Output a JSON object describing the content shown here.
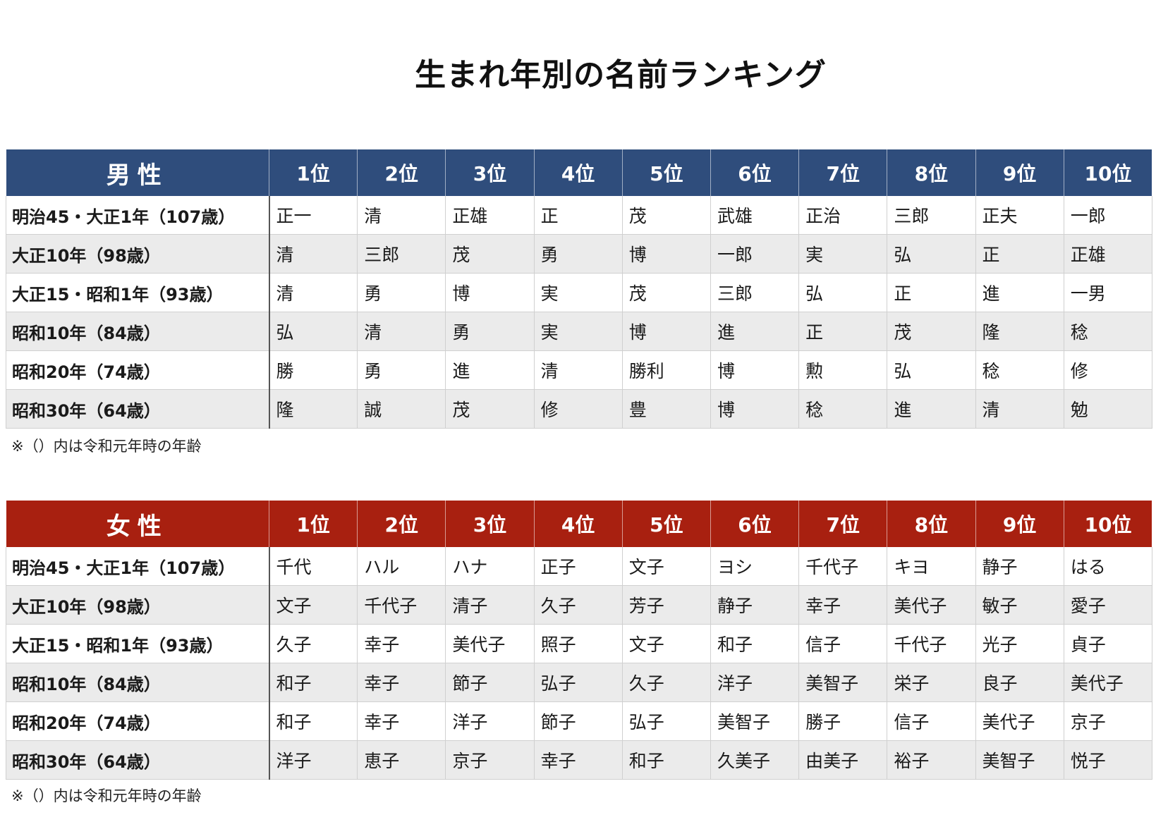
{
  "title": "生まれ年別の名前ランキング",
  "rank_headers": [
    "1位",
    "2位",
    "3位",
    "4位",
    "5位",
    "6位",
    "7位",
    "8位",
    "9位",
    "10位"
  ],
  "colors": {
    "male_header": "#2f4d7c",
    "female_header": "#a82010",
    "row_alt": "#ebebeb"
  },
  "male": {
    "label": "男性",
    "rows": [
      {
        "year": "明治45・大正1年（107歳）",
        "names": [
          "正一",
          "清",
          "正雄",
          "正",
          "茂",
          "武雄",
          "正治",
          "三郎",
          "正夫",
          "一郎"
        ]
      },
      {
        "year": "大正10年（98歳）",
        "names": [
          "清",
          "三郎",
          "茂",
          "勇",
          "博",
          "一郎",
          "実",
          "弘",
          "正",
          "正雄"
        ]
      },
      {
        "year": "大正15・昭和1年（93歳）",
        "names": [
          "清",
          "勇",
          "博",
          "実",
          "茂",
          "三郎",
          "弘",
          "正",
          "進",
          "一男"
        ]
      },
      {
        "year": "昭和10年（84歳）",
        "names": [
          "弘",
          "清",
          "勇",
          "実",
          "博",
          "進",
          "正",
          "茂",
          "隆",
          "稔"
        ]
      },
      {
        "year": "昭和20年（74歳）",
        "names": [
          "勝",
          "勇",
          "進",
          "清",
          "勝利",
          "博",
          "勲",
          "弘",
          "稔",
          "修"
        ]
      },
      {
        "year": "昭和30年（64歳）",
        "names": [
          "隆",
          "誠",
          "茂",
          "修",
          "豊",
          "博",
          "稔",
          "進",
          "清",
          "勉"
        ]
      }
    ],
    "note": "※（）内は令和元年時の年齢"
  },
  "female": {
    "label": "女性",
    "rows": [
      {
        "year": "明治45・大正1年（107歳）",
        "names": [
          "千代",
          "ハル",
          "ハナ",
          "正子",
          "文子",
          "ヨシ",
          "千代子",
          "キヨ",
          "静子",
          "はる"
        ]
      },
      {
        "year": "大正10年（98歳）",
        "names": [
          "文子",
          "千代子",
          "清子",
          "久子",
          "芳子",
          "静子",
          "幸子",
          "美代子",
          "敏子",
          "愛子"
        ]
      },
      {
        "year": "大正15・昭和1年（93歳）",
        "names": [
          "久子",
          "幸子",
          "美代子",
          "照子",
          "文子",
          "和子",
          "信子",
          "千代子",
          "光子",
          "貞子"
        ]
      },
      {
        "year": "昭和10年（84歳）",
        "names": [
          "和子",
          "幸子",
          "節子",
          "弘子",
          "久子",
          "洋子",
          "美智子",
          "栄子",
          "良子",
          "美代子"
        ]
      },
      {
        "year": "昭和20年（74歳）",
        "names": [
          "和子",
          "幸子",
          "洋子",
          "節子",
          "弘子",
          "美智子",
          "勝子",
          "信子",
          "美代子",
          "京子"
        ]
      },
      {
        "year": "昭和30年（64歳）",
        "names": [
          "洋子",
          "恵子",
          "京子",
          "幸子",
          "和子",
          "久美子",
          "由美子",
          "裕子",
          "美智子",
          "悦子"
        ]
      }
    ],
    "note": "※（）内は令和元年時の年齢"
  }
}
